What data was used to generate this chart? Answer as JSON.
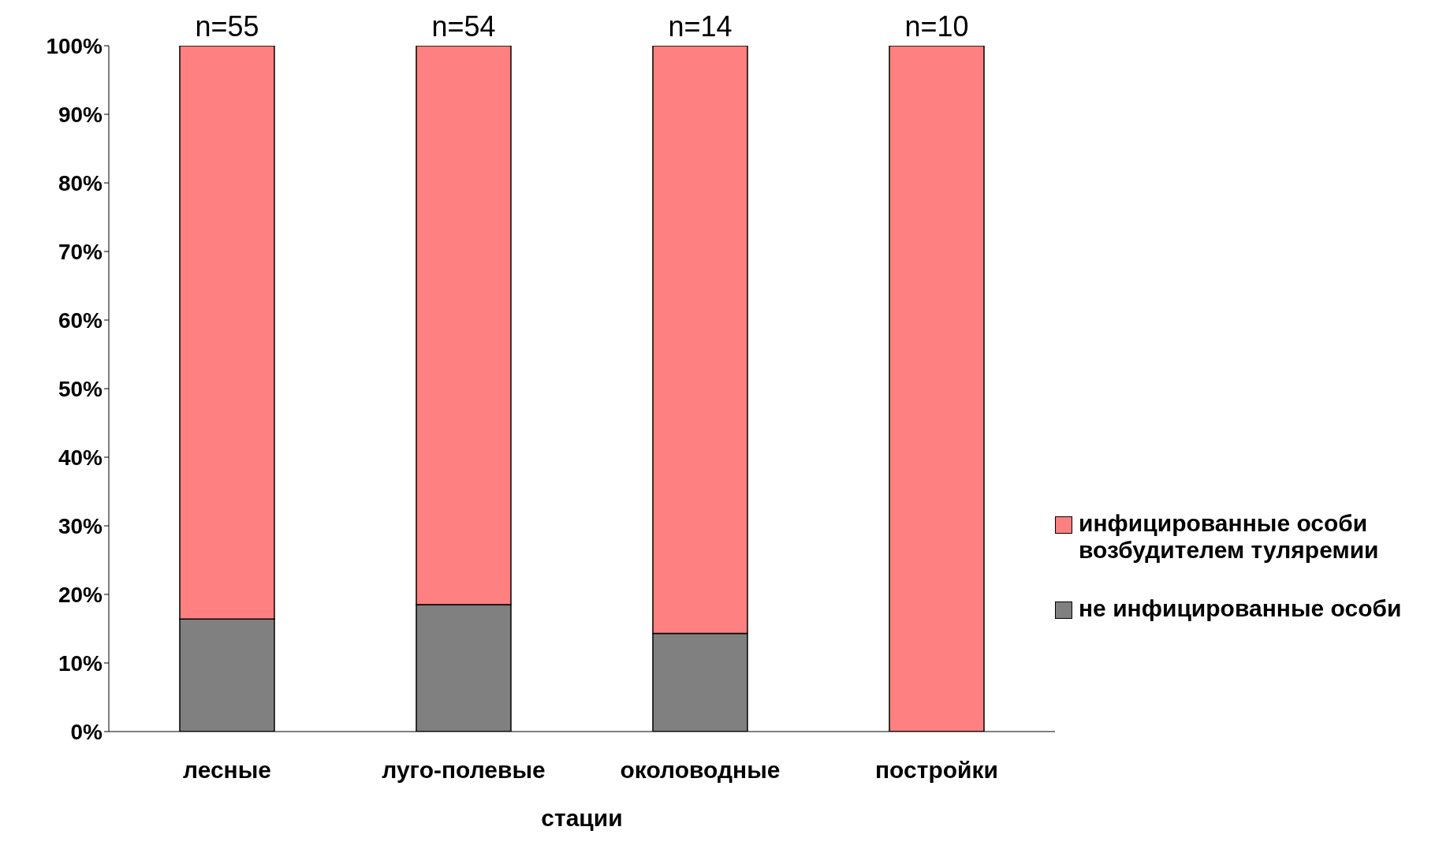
{
  "chart_data": {
    "type": "bar",
    "stacked": true,
    "xlabel": "стации",
    "categories": [
      "лесные",
      "луго-полевые",
      "околоводные",
      "постройки"
    ],
    "series": [
      {
        "name": "не инфицированные особи",
        "color": "#808080",
        "values": [
          16.4,
          18.5,
          14.3,
          0
        ]
      },
      {
        "name": "инфицированные особи возбудителем туляремии",
        "color": "#ff8080",
        "values": [
          83.6,
          81.5,
          85.7,
          100
        ]
      }
    ],
    "ylim": [
      0,
      100
    ],
    "yticks": [
      {
        "value": 0,
        "label": "0%"
      },
      {
        "value": 10,
        "label": "10%"
      },
      {
        "value": 20,
        "label": "20%"
      },
      {
        "value": 30,
        "label": "30%"
      },
      {
        "value": 40,
        "label": "40%"
      },
      {
        "value": 50,
        "label": "50%"
      },
      {
        "value": 60,
        "label": "60%"
      },
      {
        "value": 70,
        "label": "70%"
      },
      {
        "value": 80,
        "label": "80%"
      },
      {
        "value": 90,
        "label": "90%"
      },
      {
        "value": 100,
        "label": "100%"
      }
    ],
    "annotations": [
      {
        "text": "n=55",
        "x": "лесные",
        "y": 100
      },
      {
        "text": "n=54",
        "x": "луго-полевые",
        "y": 100
      },
      {
        "text": "n=14",
        "x": "околоводные",
        "y": 100
      },
      {
        "text": "n=10",
        "x": "постройки",
        "y": 100
      }
    ],
    "grid": false,
    "legend": "right"
  }
}
